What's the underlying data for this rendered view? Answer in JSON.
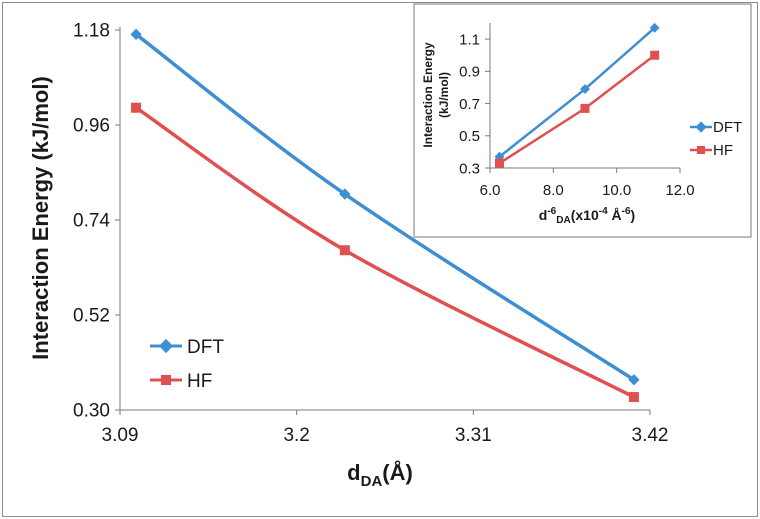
{
  "chart_data": [
    {
      "type": "line",
      "title": "",
      "xlabel": "d",
      "xlabel_sub": "DA",
      "xlabel_suffix": "(Å)",
      "ylabel": "Interaction Energy (kJ/mol)",
      "xlim": [
        3.09,
        3.42
      ],
      "ylim": [
        0.3,
        1.18
      ],
      "xticks": [
        "3.09",
        "3.2",
        "3.31",
        "3.42"
      ],
      "yticks": [
        "0.30",
        "0.52",
        "0.74",
        "0.96",
        "1.18"
      ],
      "legend_position": "bottom-left",
      "series": [
        {
          "name": "DFT",
          "color": "#3d8fd1",
          "marker": "diamond",
          "x": [
            3.1,
            3.23,
            3.41
          ],
          "y": [
            1.17,
            0.8,
            0.37
          ]
        },
        {
          "name": "HF",
          "color": "#e05050",
          "marker": "square",
          "x": [
            3.1,
            3.23,
            3.41
          ],
          "y": [
            1.0,
            0.67,
            0.33
          ]
        }
      ]
    },
    {
      "type": "line",
      "title": "",
      "xlabel": "d",
      "xlabel_sup": "-6",
      "xlabel_sub": "DA",
      "xlabel_suffix": "(x10",
      "xlabel_sup2": "-4",
      "xlabel_suffix2": " Å",
      "xlabel_sup3": "-6",
      "xlabel_end": ")",
      "ylabel": "Interaction Energy",
      "ylabel2": "(kJ/mol)",
      "xlim": [
        6.0,
        12.0
      ],
      "ylim": [
        0.3,
        1.2
      ],
      "xticks": [
        "6.0",
        "8.0",
        "10.0",
        "12.0"
      ],
      "yticks": [
        "0.3",
        "0.5",
        "0.7",
        "0.9",
        "1.1"
      ],
      "legend_position": "right",
      "series": [
        {
          "name": "DFT",
          "color": "#3d8fd1",
          "marker": "diamond",
          "x": [
            6.3,
            9.0,
            11.2
          ],
          "y": [
            0.37,
            0.79,
            1.17
          ]
        },
        {
          "name": "HF",
          "color": "#e05050",
          "marker": "square",
          "x": [
            6.3,
            9.0,
            11.2
          ],
          "y": [
            0.33,
            0.67,
            1.0
          ]
        }
      ]
    }
  ]
}
